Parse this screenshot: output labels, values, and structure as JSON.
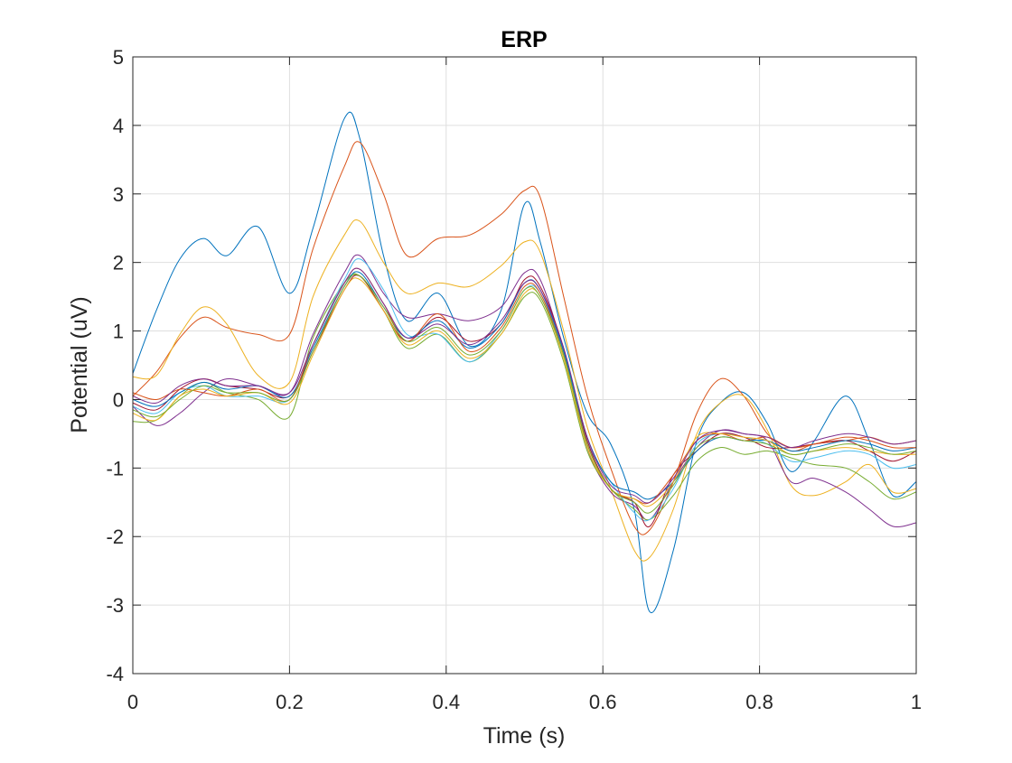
{
  "chart_data": {
    "type": "line",
    "title": "ERP",
    "xlabel": "Time (s)",
    "ylabel": "Potential (uV)",
    "xlim": [
      0,
      1
    ],
    "ylim": [
      -4,
      5
    ],
    "xticks": [
      0,
      0.2,
      0.4,
      0.6,
      0.8,
      1
    ],
    "xtick_labels": [
      "0",
      "0.2",
      "0.4",
      "0.6",
      "0.8",
      "1"
    ],
    "yticks": [
      -4,
      -3,
      -2,
      -1,
      0,
      1,
      2,
      3,
      4,
      5
    ],
    "ytick_labels": [
      "-4",
      "-3",
      "-2",
      "-1",
      "0",
      "1",
      "2",
      "3",
      "4",
      "5"
    ],
    "grid": true,
    "legend": "none",
    "colors": [
      "#0072BD",
      "#D95319",
      "#EDB120",
      "#7E2F8E",
      "#77AC30",
      "#4DBEEE",
      "#A2142F"
    ],
    "x": [
      0,
      0.03,
      0.06,
      0.09,
      0.12,
      0.16,
      0.2,
      0.23,
      0.27,
      0.29,
      0.32,
      0.35,
      0.39,
      0.43,
      0.47,
      0.5,
      0.52,
      0.55,
      0.58,
      0.61,
      0.64,
      0.66,
      0.69,
      0.72,
      0.75,
      0.78,
      0.81,
      0.84,
      0.87,
      0.91,
      0.94,
      0.97,
      1.0
    ],
    "series": [
      {
        "values": [
          0.38,
          1.3,
          2.05,
          2.35,
          2.1,
          2.52,
          1.55,
          2.5,
          4.1,
          3.8,
          2.1,
          1.15,
          1.55,
          0.78,
          1.3,
          2.85,
          2.3,
          0.9,
          -0.2,
          -0.65,
          -1.6,
          -3.1,
          -2.2,
          -0.6,
          -0.05,
          0.1,
          -0.35,
          -1.05,
          -0.6,
          0.05,
          -0.6,
          -1.4,
          -1.2
        ]
      },
      {
        "values": [
          0.05,
          0.4,
          0.9,
          1.2,
          1.05,
          0.95,
          0.95,
          2.2,
          3.4,
          3.75,
          3.0,
          2.1,
          2.35,
          2.4,
          2.7,
          3.05,
          2.95,
          1.5,
          0.05,
          -1.0,
          -1.85,
          -1.9,
          -1.2,
          -0.2,
          0.3,
          0.05,
          -0.5,
          -0.75,
          -0.65,
          -0.6,
          -0.55,
          -0.65,
          -0.6
        ]
      },
      {
        "values": [
          0.33,
          0.35,
          0.95,
          1.35,
          1.1,
          0.35,
          0.25,
          1.5,
          2.4,
          2.6,
          2.0,
          1.55,
          1.7,
          1.65,
          1.95,
          2.3,
          2.15,
          1.0,
          -0.4,
          -1.3,
          -2.2,
          -2.3,
          -1.6,
          -0.5,
          -0.05,
          0.05,
          -0.45,
          -1.25,
          -1.4,
          -1.2,
          -0.95,
          -1.35,
          -1.3
        ]
      },
      {
        "values": [
          -0.1,
          -0.38,
          -0.2,
          0.1,
          0.3,
          0.2,
          0.1,
          0.95,
          1.85,
          2.1,
          1.55,
          1.2,
          1.25,
          1.15,
          1.35,
          1.85,
          1.75,
          0.7,
          -0.7,
          -1.35,
          -1.55,
          -1.75,
          -1.2,
          -0.7,
          -0.45,
          -0.5,
          -0.6,
          -1.2,
          -1.15,
          -1.35,
          -1.6,
          -1.85,
          -1.8
        ]
      },
      {
        "values": [
          -0.32,
          -0.3,
          0.05,
          0.25,
          0.1,
          0.0,
          -0.25,
          0.9,
          1.7,
          1.8,
          1.3,
          0.75,
          0.95,
          0.55,
          0.95,
          1.5,
          1.45,
          0.55,
          -0.75,
          -1.3,
          -1.6,
          -1.75,
          -1.4,
          -0.9,
          -0.7,
          -0.8,
          -0.75,
          -0.85,
          -0.95,
          -1.0,
          -1.2,
          -1.45,
          -1.35
        ]
      },
      {
        "values": [
          -0.1,
          -0.2,
          0.1,
          0.2,
          0.05,
          0.05,
          0.0,
          0.8,
          1.75,
          2.05,
          1.6,
          0.95,
          0.95,
          0.55,
          1.0,
          1.6,
          1.55,
          0.7,
          -0.6,
          -1.2,
          -1.65,
          -1.75,
          -1.3,
          -0.65,
          -0.5,
          -0.55,
          -0.65,
          -0.9,
          -0.85,
          -0.75,
          -0.8,
          -1.0,
          -0.95
        ]
      },
      {
        "values": [
          -0.05,
          -0.15,
          0.15,
          0.3,
          0.2,
          0.15,
          0.05,
          0.7,
          1.6,
          1.8,
          1.3,
          0.85,
          1.2,
          0.85,
          1.1,
          1.75,
          1.65,
          0.75,
          -0.6,
          -1.3,
          -1.5,
          -1.85,
          -1.1,
          -0.75,
          -0.5,
          -0.55,
          -0.7,
          -0.7,
          -0.65,
          -0.6,
          -0.75,
          -0.9,
          -0.75
        ]
      },
      {
        "values": [
          0.0,
          -0.1,
          0.1,
          0.25,
          0.15,
          0.2,
          0.05,
          0.75,
          1.65,
          1.85,
          1.35,
          0.9,
          1.15,
          0.75,
          1.1,
          1.7,
          1.6,
          0.7,
          -0.55,
          -1.2,
          -1.35,
          -1.45,
          -1.2,
          -0.75,
          -0.55,
          -0.6,
          -0.6,
          -0.75,
          -0.7,
          -0.6,
          -0.65,
          -0.75,
          -0.7
        ]
      },
      {
        "values": [
          0.1,
          0.0,
          0.15,
          0.1,
          0.05,
          0.15,
          0.0,
          0.8,
          1.7,
          1.9,
          1.4,
          0.85,
          1.25,
          0.7,
          1.05,
          1.65,
          1.55,
          0.65,
          -0.65,
          -1.3,
          -1.45,
          -1.5,
          -1.1,
          -0.6,
          -0.5,
          -0.6,
          -0.55,
          -0.7,
          -0.65,
          -0.55,
          -0.6,
          -0.7,
          -0.7
        ]
      },
      {
        "values": [
          -0.2,
          -0.3,
          0.05,
          0.15,
          0.05,
          0.1,
          -0.05,
          0.65,
          1.6,
          1.75,
          1.3,
          0.8,
          1.0,
          0.6,
          0.95,
          1.55,
          1.5,
          0.6,
          -0.7,
          -1.3,
          -1.45,
          -1.55,
          -1.2,
          -0.55,
          -0.5,
          -0.55,
          -0.6,
          -0.8,
          -0.75,
          -0.7,
          -0.75,
          -0.8,
          -0.8
        ]
      },
      {
        "values": [
          0.05,
          -0.05,
          0.2,
          0.3,
          0.2,
          0.2,
          0.1,
          0.8,
          1.7,
          1.9,
          1.4,
          0.9,
          1.1,
          0.8,
          1.15,
          1.7,
          1.6,
          0.75,
          -0.55,
          -1.25,
          -1.4,
          -1.5,
          -1.15,
          -0.6,
          -0.45,
          -0.5,
          -0.55,
          -0.7,
          -0.6,
          -0.5,
          -0.55,
          -0.65,
          -0.6
        ]
      },
      {
        "values": [
          -0.15,
          -0.25,
          0.0,
          0.2,
          0.1,
          0.1,
          0.0,
          0.7,
          1.65,
          1.8,
          1.35,
          0.85,
          1.05,
          0.65,
          1.0,
          1.6,
          1.5,
          0.65,
          -0.65,
          -1.3,
          -1.5,
          -1.65,
          -1.25,
          -0.7,
          -0.55,
          -0.6,
          -0.65,
          -0.8,
          -0.75,
          -0.65,
          -0.7,
          -0.8,
          -0.75
        ]
      }
    ]
  }
}
